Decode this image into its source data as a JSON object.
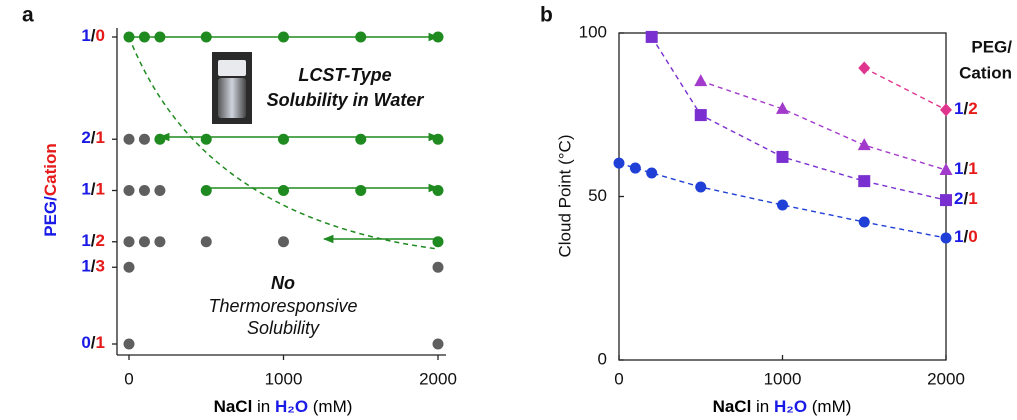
{
  "chart_data": [
    {
      "type": "scatter",
      "panel": "a",
      "xlabel": [
        {
          "text": "NaCl",
          "color": "#000000",
          "bold": true
        },
        {
          "text": " in ",
          "color": "#000000",
          "bold": false
        },
        {
          "text": "H₂O",
          "color": "#1a1ae6",
          "bold": true
        },
        {
          "text": " (mM)",
          "color": "#000000",
          "bold": false
        }
      ],
      "ylabel": [
        {
          "text": "PEG/",
          "color": "#1a1ae6",
          "bold": true
        },
        {
          "text": "Cation",
          "color": "#e61a1a",
          "bold": true
        }
      ],
      "ratio_colors": [
        "#1a1ae6",
        "#111111",
        "#e61a1a"
      ],
      "xlim": [
        0,
        2000
      ],
      "xticks": [
        0,
        1000,
        2000
      ],
      "ylim": [
        0,
        1
      ],
      "yticks": [
        {
          "value": 0,
          "label": "0/1"
        },
        {
          "value": 0.25,
          "label": "1/3"
        },
        {
          "value": 0.333,
          "label": "1/2"
        },
        {
          "value": 0.5,
          "label": "1/1"
        },
        {
          "value": 0.667,
          "label": "2/1"
        },
        {
          "value": 1,
          "label": "1/0"
        }
      ],
      "series": [
        {
          "color": "#1f8a1f",
          "x": [
            0,
            100,
            200,
            500,
            1000,
            1500,
            2000,
            200,
            500,
            1000,
            1500,
            2000,
            500,
            1000,
            1500,
            2000,
            2000
          ],
          "y": [
            1,
            1,
            1,
            1,
            1,
            1,
            1,
            0.667,
            0.667,
            0.667,
            0.667,
            0.667,
            0.5,
            0.5,
            0.5,
            0.5,
            0.333
          ]
        },
        {
          "color": "#5f5f5f",
          "x": [
            0,
            100,
            0,
            100,
            200,
            0,
            100,
            200,
            500,
            1000,
            0,
            2000,
            0,
            2000
          ],
          "y": [
            0.667,
            0.667,
            0.5,
            0.5,
            0.5,
            0.333,
            0.333,
            0.333,
            0.333,
            0.333,
            0.25,
            0.25,
            0,
            0
          ]
        }
      ],
      "annotations": [
        "LCST-Type",
        "Solubility in Water",
        "No",
        "Thermoresponsive",
        "Solubility"
      ]
    },
    {
      "type": "line",
      "panel": "b",
      "xlabel": [
        {
          "text": "NaCl",
          "color": "#000000",
          "bold": true
        },
        {
          "text": " in ",
          "color": "#000000",
          "bold": false
        },
        {
          "text": "H₂O",
          "color": "#1a1ae6",
          "bold": true
        },
        {
          "text": " (mM)",
          "color": "#000000",
          "bold": false
        }
      ],
      "ylabel": "Cloud Point (°C)",
      "legend_title": [
        {
          "text": "PEG/",
          "color": "#1a1ae6",
          "bold": true
        },
        {
          "text": "Cation",
          "color": "#e61a1a",
          "bold": true
        }
      ],
      "ratio_colors": [
        "#1a1ae6",
        "#111111",
        "#e61a1a"
      ],
      "xlim": [
        0,
        2000
      ],
      "xticks": [
        0,
        1000,
        2000
      ],
      "ylim": [
        0,
        100
      ],
      "yticks": [
        0,
        50,
        100
      ],
      "series": [
        {
          "name": "1/0",
          "color": "#1f3fd6",
          "marker": "circle",
          "x": [
            0,
            100,
            200,
            500,
            1000,
            1500,
            2000
          ],
          "values": [
            60.2,
            58.7,
            57.2,
            52.9,
            47.4,
            42.2,
            37.3
          ]
        },
        {
          "name": "2/1",
          "color": "#7a2fd0",
          "marker": "square",
          "x": [
            200,
            500,
            1000,
            1500,
            2000
          ],
          "values": [
            98.8,
            74.9,
            62.1,
            54.7,
            48.9
          ]
        },
        {
          "name": "1/1",
          "color": "#a23acb",
          "marker": "triangle",
          "x": [
            500,
            1000,
            1500,
            2000
          ],
          "values": [
            85.3,
            76.8,
            65.7,
            58.1
          ]
        },
        {
          "name": "1/2",
          "color": "#e0358f",
          "marker": "diamond",
          "x": [
            1500,
            2000
          ],
          "values": [
            89.3,
            76.5
          ]
        }
      ]
    }
  ]
}
